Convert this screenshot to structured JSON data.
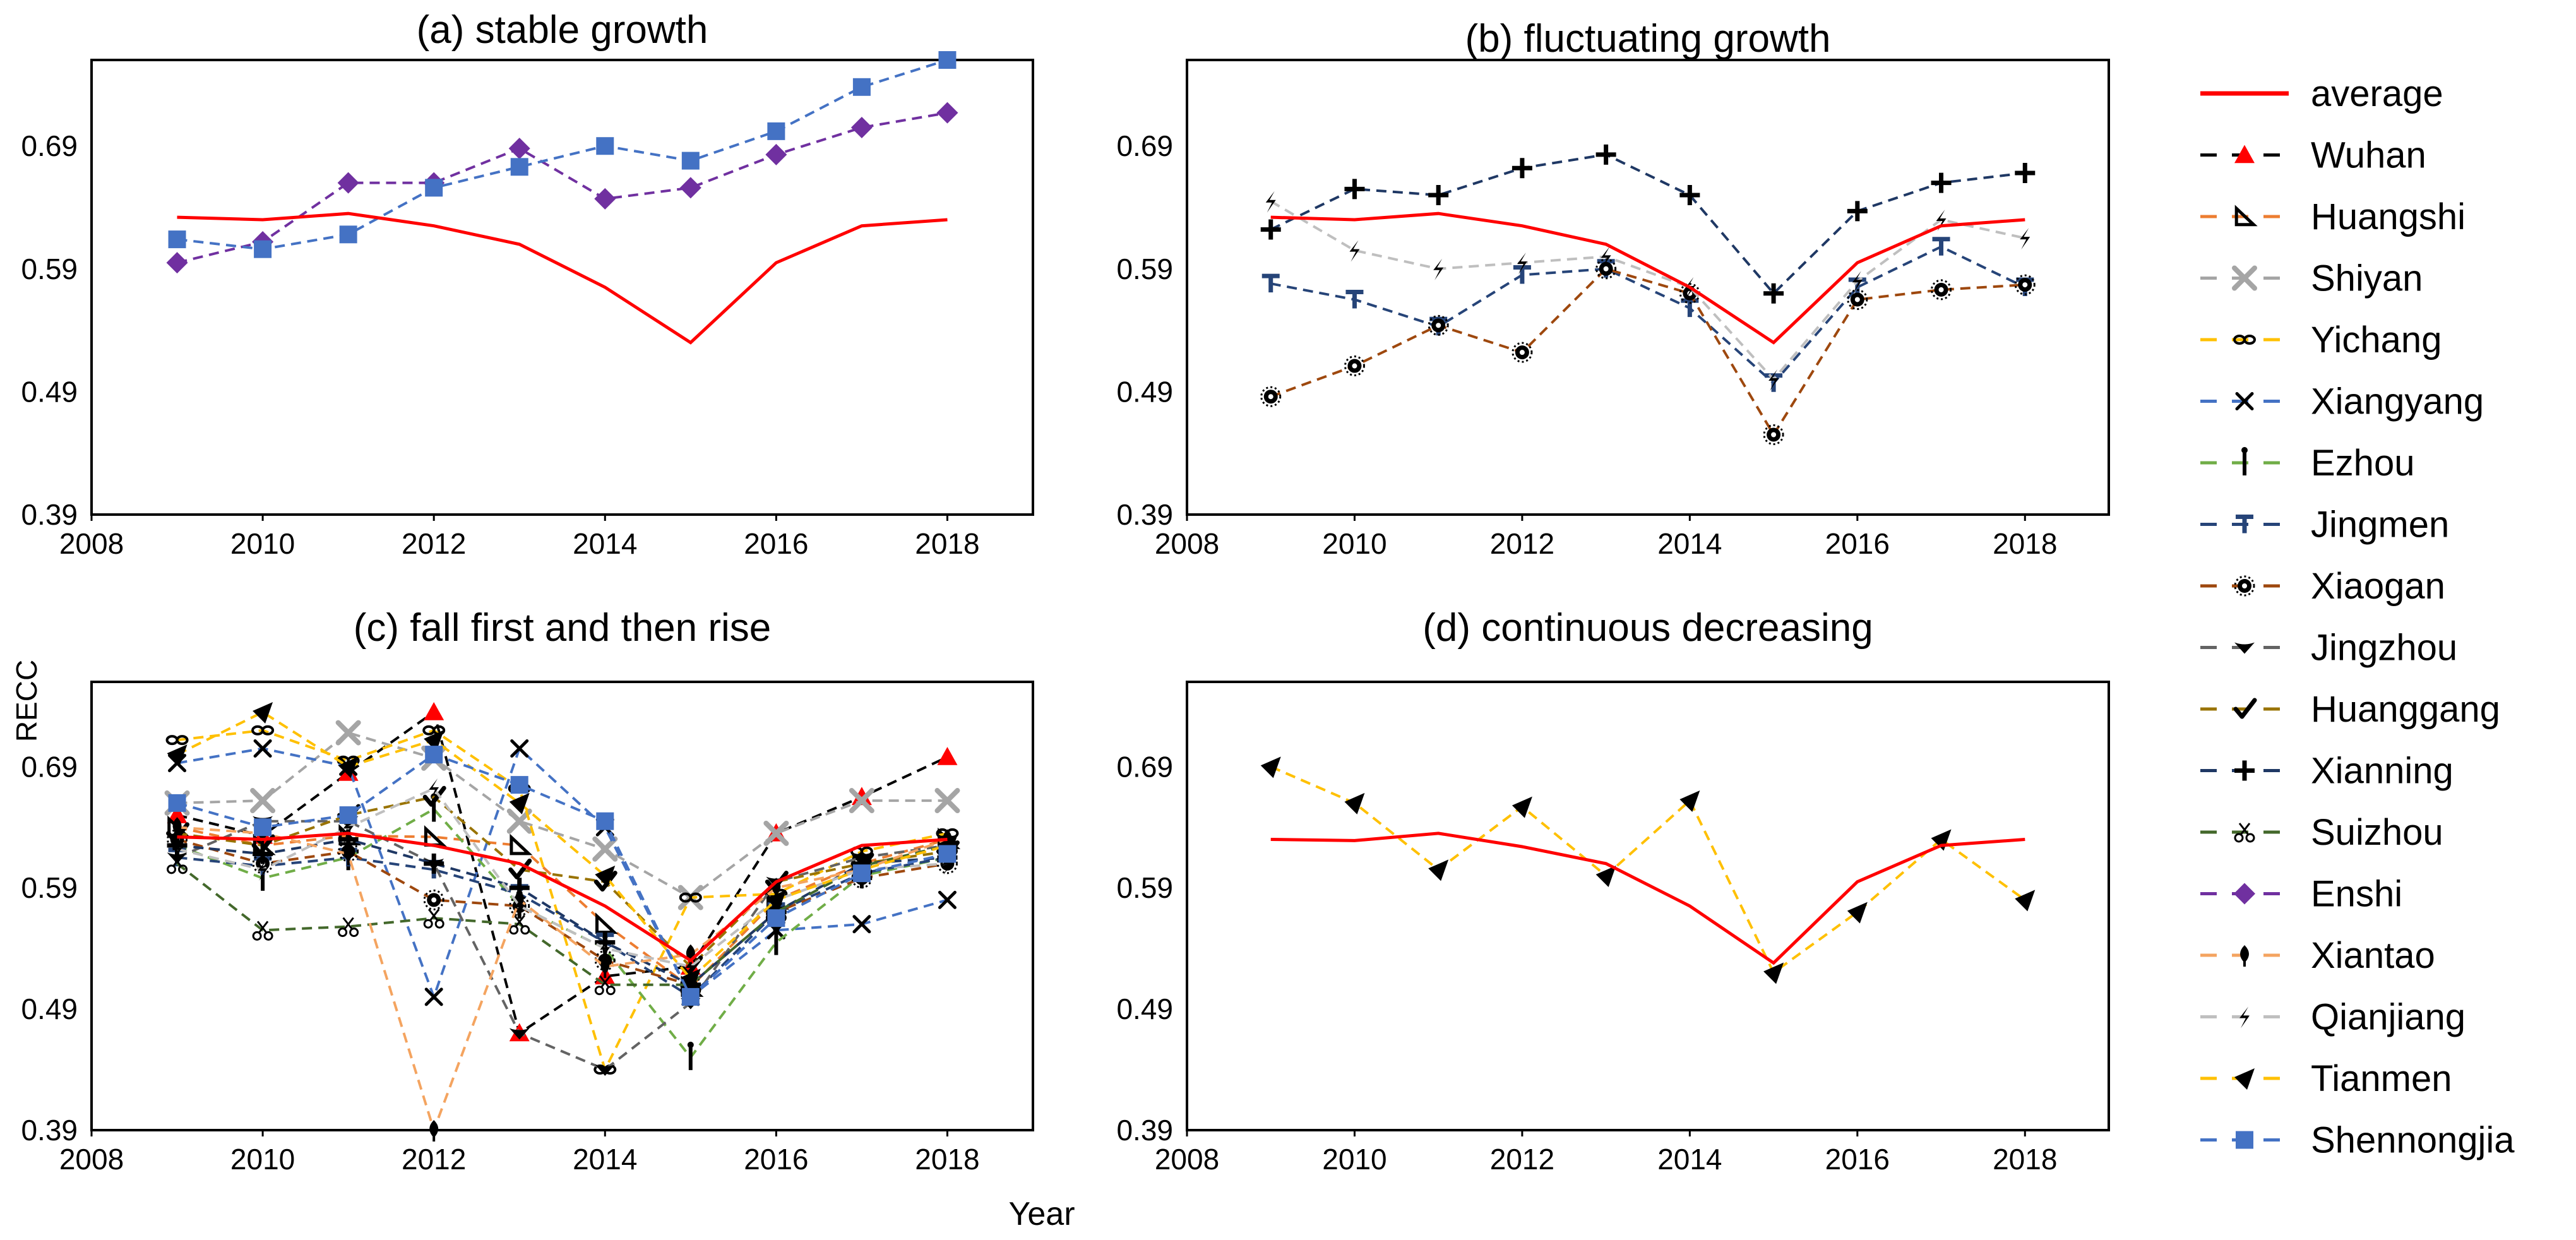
{
  "figure": {
    "ylabel": "RECC",
    "xlabel": "Year",
    "colors": {
      "average": "#ff0000",
      "Wuhan": "#000000",
      "Huangshi": "#ed7d31",
      "Shiyan": "#a5a5a5",
      "Yichang": "#ffc000",
      "Xiangyang": "#4472c4",
      "Ezhou": "#70ad47",
      "Jingmen": "#264478",
      "Xiaogan": "#9e480e",
      "Jingzhou": "#636363",
      "Huanggang": "#997300",
      "Xianning": "#1f3864",
      "Suizhou": "#43682b",
      "Enshi": "#7030a0",
      "Xiantao": "#f4a460",
      "Qianjiang": "#bfbfbf",
      "Tianmen": "#ffc000",
      "Shennongjia": "#4472c4"
    }
  },
  "legend": {
    "entries": [
      {
        "name": "average",
        "marker": "line"
      },
      {
        "name": "Wuhan",
        "marker": "triangle"
      },
      {
        "name": "Huangshi",
        "marker": "right-triangle"
      },
      {
        "name": "Shiyan",
        "marker": "x-thick"
      },
      {
        "name": "Yichang",
        "marker": "infinity"
      },
      {
        "name": "Xiangyang",
        "marker": "x"
      },
      {
        "name": "Ezhou",
        "marker": "dagger"
      },
      {
        "name": "Jingmen",
        "marker": "t-bar"
      },
      {
        "name": "Xiaogan",
        "marker": "sun"
      },
      {
        "name": "Jingzhou",
        "marker": "heart"
      },
      {
        "name": "Huanggang",
        "marker": "check"
      },
      {
        "name": "Xianning",
        "marker": "plus"
      },
      {
        "name": "Suizhou",
        "marker": "scissors"
      },
      {
        "name": "Enshi",
        "marker": "diamond"
      },
      {
        "name": "Xiantao",
        "marker": "spade"
      },
      {
        "name": "Qianjiang",
        "marker": "bolt"
      },
      {
        "name": "Tianmen",
        "marker": "arrow"
      },
      {
        "name": "Shennongjia",
        "marker": "square"
      }
    ]
  },
  "chart_data": [
    {
      "type": "line",
      "title": "(a) stable growth",
      "xlabel": "Year",
      "ylabel": "RECC",
      "xlim": [
        2008,
        2019
      ],
      "ylim": [
        0.39,
        0.76
      ],
      "xticks": [
        2008,
        2010,
        2012,
        2014,
        2016,
        2018
      ],
      "yticks": [
        0.39,
        0.49,
        0.59,
        0.69
      ],
      "ytick_labels": [
        "0.39",
        "0.49",
        "0.59",
        "0.69"
      ],
      "x": [
        2009,
        2010,
        2011,
        2012,
        2013,
        2014,
        2015,
        2016,
        2017,
        2018
      ],
      "series": [
        {
          "name": "average",
          "values": [
            0.632,
            0.63,
            0.635,
            0.625,
            0.61,
            0.575,
            0.53,
            0.595,
            0.625,
            0.63
          ]
        },
        {
          "name": "Enshi",
          "values": [
            0.595,
            0.612,
            0.66,
            0.66,
            0.688,
            0.647,
            0.656,
            0.683,
            0.705,
            0.717
          ]
        },
        {
          "name": "Shennongjia",
          "values": [
            0.614,
            0.606,
            0.618,
            0.656,
            0.673,
            0.69,
            0.678,
            0.702,
            0.738,
            0.76
          ]
        }
      ]
    },
    {
      "type": "line",
      "title": "(b) fluctuating growth",
      "xlabel": "Year",
      "ylabel": "RECC",
      "xlim": [
        2008,
        2019
      ],
      "ylim": [
        0.39,
        0.76
      ],
      "xticks": [
        2008,
        2010,
        2012,
        2014,
        2016,
        2018
      ],
      "yticks": [
        0.39,
        0.49,
        0.59,
        0.69
      ],
      "ytick_labels": [
        "0.39",
        "0.49",
        "0.59",
        "0.69"
      ],
      "x": [
        2009,
        2010,
        2011,
        2012,
        2013,
        2014,
        2015,
        2016,
        2017,
        2018
      ],
      "series": [
        {
          "name": "average",
          "values": [
            0.632,
            0.63,
            0.635,
            0.625,
            0.61,
            0.575,
            0.53,
            0.595,
            0.625,
            0.63
          ]
        },
        {
          "name": "Jingmen",
          "values": [
            0.578,
            0.565,
            0.543,
            0.585,
            0.59,
            0.558,
            0.497,
            0.575,
            0.608,
            0.575
          ]
        },
        {
          "name": "Xiaogan",
          "values": [
            0.486,
            0.511,
            0.544,
            0.522,
            0.59,
            0.57,
            0.455,
            0.565,
            0.573,
            0.577
          ]
        },
        {
          "name": "Xianning",
          "values": [
            0.622,
            0.655,
            0.65,
            0.672,
            0.683,
            0.65,
            0.57,
            0.637,
            0.66,
            0.668
          ]
        },
        {
          "name": "Qianjiang",
          "values": [
            0.645,
            0.605,
            0.59,
            0.595,
            0.6,
            0.575,
            0.5,
            0.58,
            0.63,
            0.615
          ]
        }
      ]
    },
    {
      "type": "line",
      "title": "(c) fall first and then  rise",
      "xlabel": "Year",
      "ylabel": "RECC",
      "xlim": [
        2008,
        2019
      ],
      "ylim": [
        0.39,
        0.76
      ],
      "xticks": [
        2008,
        2010,
        2012,
        2014,
        2016,
        2018
      ],
      "yticks": [
        0.39,
        0.49,
        0.59,
        0.69
      ],
      "ytick_labels": [
        "0.39",
        "0.49",
        "0.59",
        "0.69"
      ],
      "x": [
        2009,
        2010,
        2011,
        2012,
        2013,
        2014,
        2015,
        2016,
        2017,
        2018
      ],
      "series": [
        {
          "name": "average",
          "values": [
            0.632,
            0.63,
            0.635,
            0.625,
            0.61,
            0.575,
            0.53,
            0.595,
            0.625,
            0.63
          ]
        },
        {
          "name": "Wuhan",
          "values": [
            0.65,
            0.633,
            0.685,
            0.735,
            0.47,
            0.517,
            0.525,
            0.635,
            0.665,
            0.698
          ]
        },
        {
          "name": "Huangshi",
          "values": [
            0.64,
            0.625,
            0.633,
            0.632,
            0.625,
            0.56,
            0.508,
            0.58,
            0.61,
            0.63
          ]
        },
        {
          "name": "Shiyan",
          "values": [
            0.66,
            0.662,
            0.718,
            0.697,
            0.645,
            0.622,
            0.582,
            0.635,
            0.662,
            0.662
          ]
        },
        {
          "name": "Yichang",
          "values": [
            0.712,
            0.72,
            0.695,
            0.72,
            0.672,
            0.44,
            0.582,
            0.585,
            0.62,
            0.635
          ]
        },
        {
          "name": "Xiangyang",
          "values": [
            0.693,
            0.705,
            0.69,
            0.5,
            0.705,
            0.64,
            0.5,
            0.555,
            0.56,
            0.58
          ]
        },
        {
          "name": "Ezhou",
          "values": [
            0.625,
            0.598,
            0.615,
            0.655,
            0.575,
            0.54,
            0.45,
            0.545,
            0.6,
            0.615
          ]
        },
        {
          "name": "Jingmen",
          "values": [
            0.615,
            0.608,
            0.615,
            0.605,
            0.585,
            0.545,
            0.5,
            0.57,
            0.602,
            0.615
          ]
        },
        {
          "name": "Xiaogan",
          "values": [
            0.63,
            0.61,
            0.62,
            0.58,
            0.575,
            0.53,
            0.51,
            0.57,
            0.598,
            0.61
          ]
        },
        {
          "name": "Jingzhou",
          "values": [
            0.615,
            0.645,
            0.645,
            0.61,
            0.47,
            0.44,
            0.495,
            0.595,
            0.615,
            0.625
          ]
        },
        {
          "name": "Huanggang",
          "values": [
            0.635,
            0.625,
            0.65,
            0.665,
            0.605,
            0.595,
            0.525,
            0.595,
            0.61,
            0.62
          ]
        },
        {
          "name": "Xianning",
          "values": [
            0.625,
            0.618,
            0.63,
            0.61,
            0.59,
            0.545,
            0.51,
            0.57,
            0.61,
            0.615
          ]
        },
        {
          "name": "Suizhou",
          "values": [
            0.61,
            0.555,
            0.558,
            0.565,
            0.56,
            0.51,
            0.51,
            0.57,
            0.608,
            0.625
          ]
        },
        {
          "name": "Xiantao",
          "values": [
            0.64,
            0.635,
            0.618,
            0.39,
            0.58,
            0.525,
            0.535,
            0.59,
            0.605,
            0.63
          ]
        },
        {
          "name": "Qianjiang",
          "values": [
            0.622,
            0.605,
            0.64,
            0.672,
            0.575,
            0.54,
            0.525,
            0.58,
            0.605,
            0.61
          ]
        },
        {
          "name": "Tianmen",
          "values": [
            0.7,
            0.735,
            0.69,
            0.712,
            0.66,
            0.6,
            0.515,
            0.58,
            0.605,
            0.625
          ]
        },
        {
          "name": "Shennongjia",
          "values": [
            0.66,
            0.64,
            0.65,
            0.7,
            0.675,
            0.645,
            0.5,
            0.565,
            0.602,
            0.618
          ]
        }
      ]
    },
    {
      "type": "line",
      "title": "(d) continuous decreasing",
      "xlabel": "Year",
      "ylabel": "RECC",
      "xlim": [
        2008,
        2019
      ],
      "ylim": [
        0.39,
        0.76
      ],
      "xticks": [
        2008,
        2010,
        2012,
        2014,
        2016,
        2018
      ],
      "yticks": [
        0.39,
        0.49,
        0.59,
        0.69
      ],
      "ytick_labels": [
        "0.39",
        "0.49",
        "0.59",
        "0.69"
      ],
      "x": [
        2009,
        2010,
        2011,
        2012,
        2013,
        2014,
        2015,
        2016,
        2017,
        2018
      ],
      "series": [
        {
          "name": "average",
          "values": [
            0.63,
            0.629,
            0.635,
            0.624,
            0.61,
            0.575,
            0.528,
            0.595,
            0.625,
            0.63
          ]
        },
        {
          "name": "Tianmen",
          "values": [
            0.69,
            0.66,
            0.605,
            0.657,
            0.6,
            0.662,
            0.52,
            0.57,
            0.63,
            0.58
          ]
        }
      ]
    }
  ]
}
